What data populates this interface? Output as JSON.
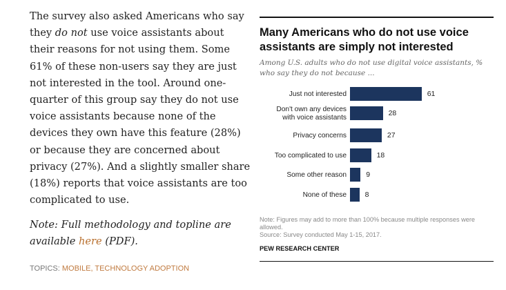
{
  "article": {
    "p1_a": "The survey also asked Americans who say they ",
    "p1_em": "do not",
    "p1_b": " use voice assistants about their reasons for not using them. Some 61% of these non-users say they are just not interested in the tool. Around one-quarter of this group say they do not use voice assistants because none of the devices they own have this feature (28%) or because they are concerned about privacy (27%). And a slightly smaller share (18%) reports that voice assistants are too complicated to use.",
    "note_a": "Note: Full methodology and topline are available ",
    "note_link": "here",
    "note_b": " (PDF).",
    "topics_label": "TOPICS: ",
    "topics": [
      "MOBILE",
      ", ",
      "TECHNOLOGY ADOPTION"
    ]
  },
  "chart_data": {
    "type": "bar",
    "title": "Many Americans who do not use voice assistants are simply not interested",
    "subtitle": "Among U.S. adults who do not use digital voice assistants, % who say they do not because ...",
    "categories": [
      "Just not interested",
      "Don't own any devices\nwith voice assistants",
      "Privacy concerns",
      "Too complicated to use",
      "Some other reason",
      "None of these"
    ],
    "values": [
      61,
      28,
      27,
      18,
      9,
      8
    ],
    "bar_color": "#1c355e",
    "footnote": "Note: Figures may add to more than 100% because multiple responses were allowed.",
    "source": "Source: Survey conducted May 1-15, 2017.",
    "org": "PEW RESEARCH CENTER"
  }
}
